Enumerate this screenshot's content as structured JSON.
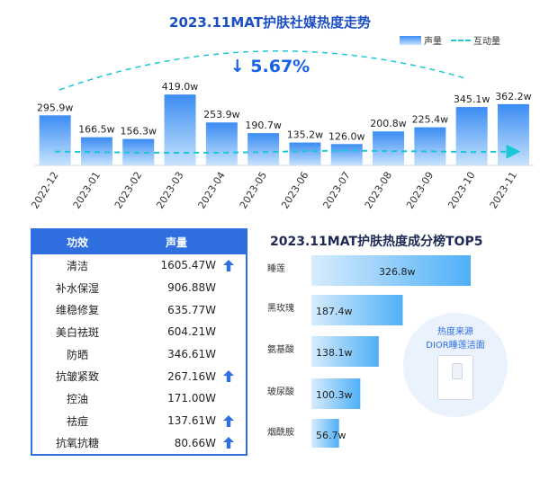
{
  "trend_title": "2023.11MAT护肤社媒热度走势",
  "legend": {
    "volume": "声量",
    "interaction": "互动量"
  },
  "change_label": "↓ 5.67%",
  "table": {
    "headers": [
      "功效",
      "声量"
    ],
    "rows": [
      {
        "effect": "清洁",
        "volume": "1605.47W",
        "up": true
      },
      {
        "effect": "补水保湿",
        "volume": "906.88W",
        "up": false
      },
      {
        "effect": "维稳修复",
        "volume": "635.77W",
        "up": false
      },
      {
        "effect": "美白祛斑",
        "volume": "604.21W",
        "up": false
      },
      {
        "effect": "防晒",
        "volume": "346.61W",
        "up": false
      },
      {
        "effect": "抗皱紧致",
        "volume": "267.16W",
        "up": true
      },
      {
        "effect": "控油",
        "volume": "171.00W",
        "up": false
      },
      {
        "effect": "祛痘",
        "volume": "137.61W",
        "up": true
      },
      {
        "effect": "抗氧抗糖",
        "volume": "80.66W",
        "up": true
      }
    ]
  },
  "rank_title": "2023.11MAT护肤热度成分榜TOP5",
  "callout": {
    "line1": "热度来源",
    "line2": "DIOR睡莲洁面"
  },
  "colors": {
    "accent": "#2f6fe0",
    "bar_top": "#3b8cf3",
    "bar_bottom": "#c6e3fd",
    "trend_line": "#19c7d6",
    "up_arrow": "#2f6fe0"
  },
  "chart_data": [
    {
      "type": "bar",
      "title": "2023.11MAT护肤社媒热度走势",
      "categories": [
        "2022-12",
        "2023-01",
        "2023-02",
        "2023-03",
        "2023-04",
        "2023-05",
        "2023-06",
        "2023-07",
        "2023-08",
        "2023-09",
        "2023-10",
        "2023-11"
      ],
      "series": [
        {
          "name": "声量",
          "values": [
            295.9,
            166.5,
            156.3,
            419.0,
            253.9,
            190.7,
            135.2,
            126.0,
            200.8,
            225.4,
            345.1,
            362.2
          ],
          "labels": [
            "295.9w",
            "166.5w",
            "156.3w",
            "419.0w",
            "253.9w",
            "190.7w",
            "135.2w",
            "126.0w",
            "200.8w",
            "225.4w",
            "345.1w",
            "362.2w"
          ]
        },
        {
          "name": "互动量",
          "type": "line",
          "dashed": true
        }
      ],
      "ylim": [
        0,
        420
      ],
      "grid": false,
      "legend": "top-right"
    },
    {
      "type": "bar",
      "orientation": "horizontal",
      "title": "2023.11MAT护肤热度成分榜TOP5",
      "categories": [
        "睡莲",
        "黑玫瑰",
        "氨基酸",
        "玻尿酸",
        "烟酰胺"
      ],
      "values": [
        326.8,
        187.4,
        138.1,
        100.3,
        56.7
      ],
      "labels": [
        "326.8w",
        "187.4w",
        "138.1w",
        "100.3w",
        "56.7w"
      ]
    }
  ]
}
